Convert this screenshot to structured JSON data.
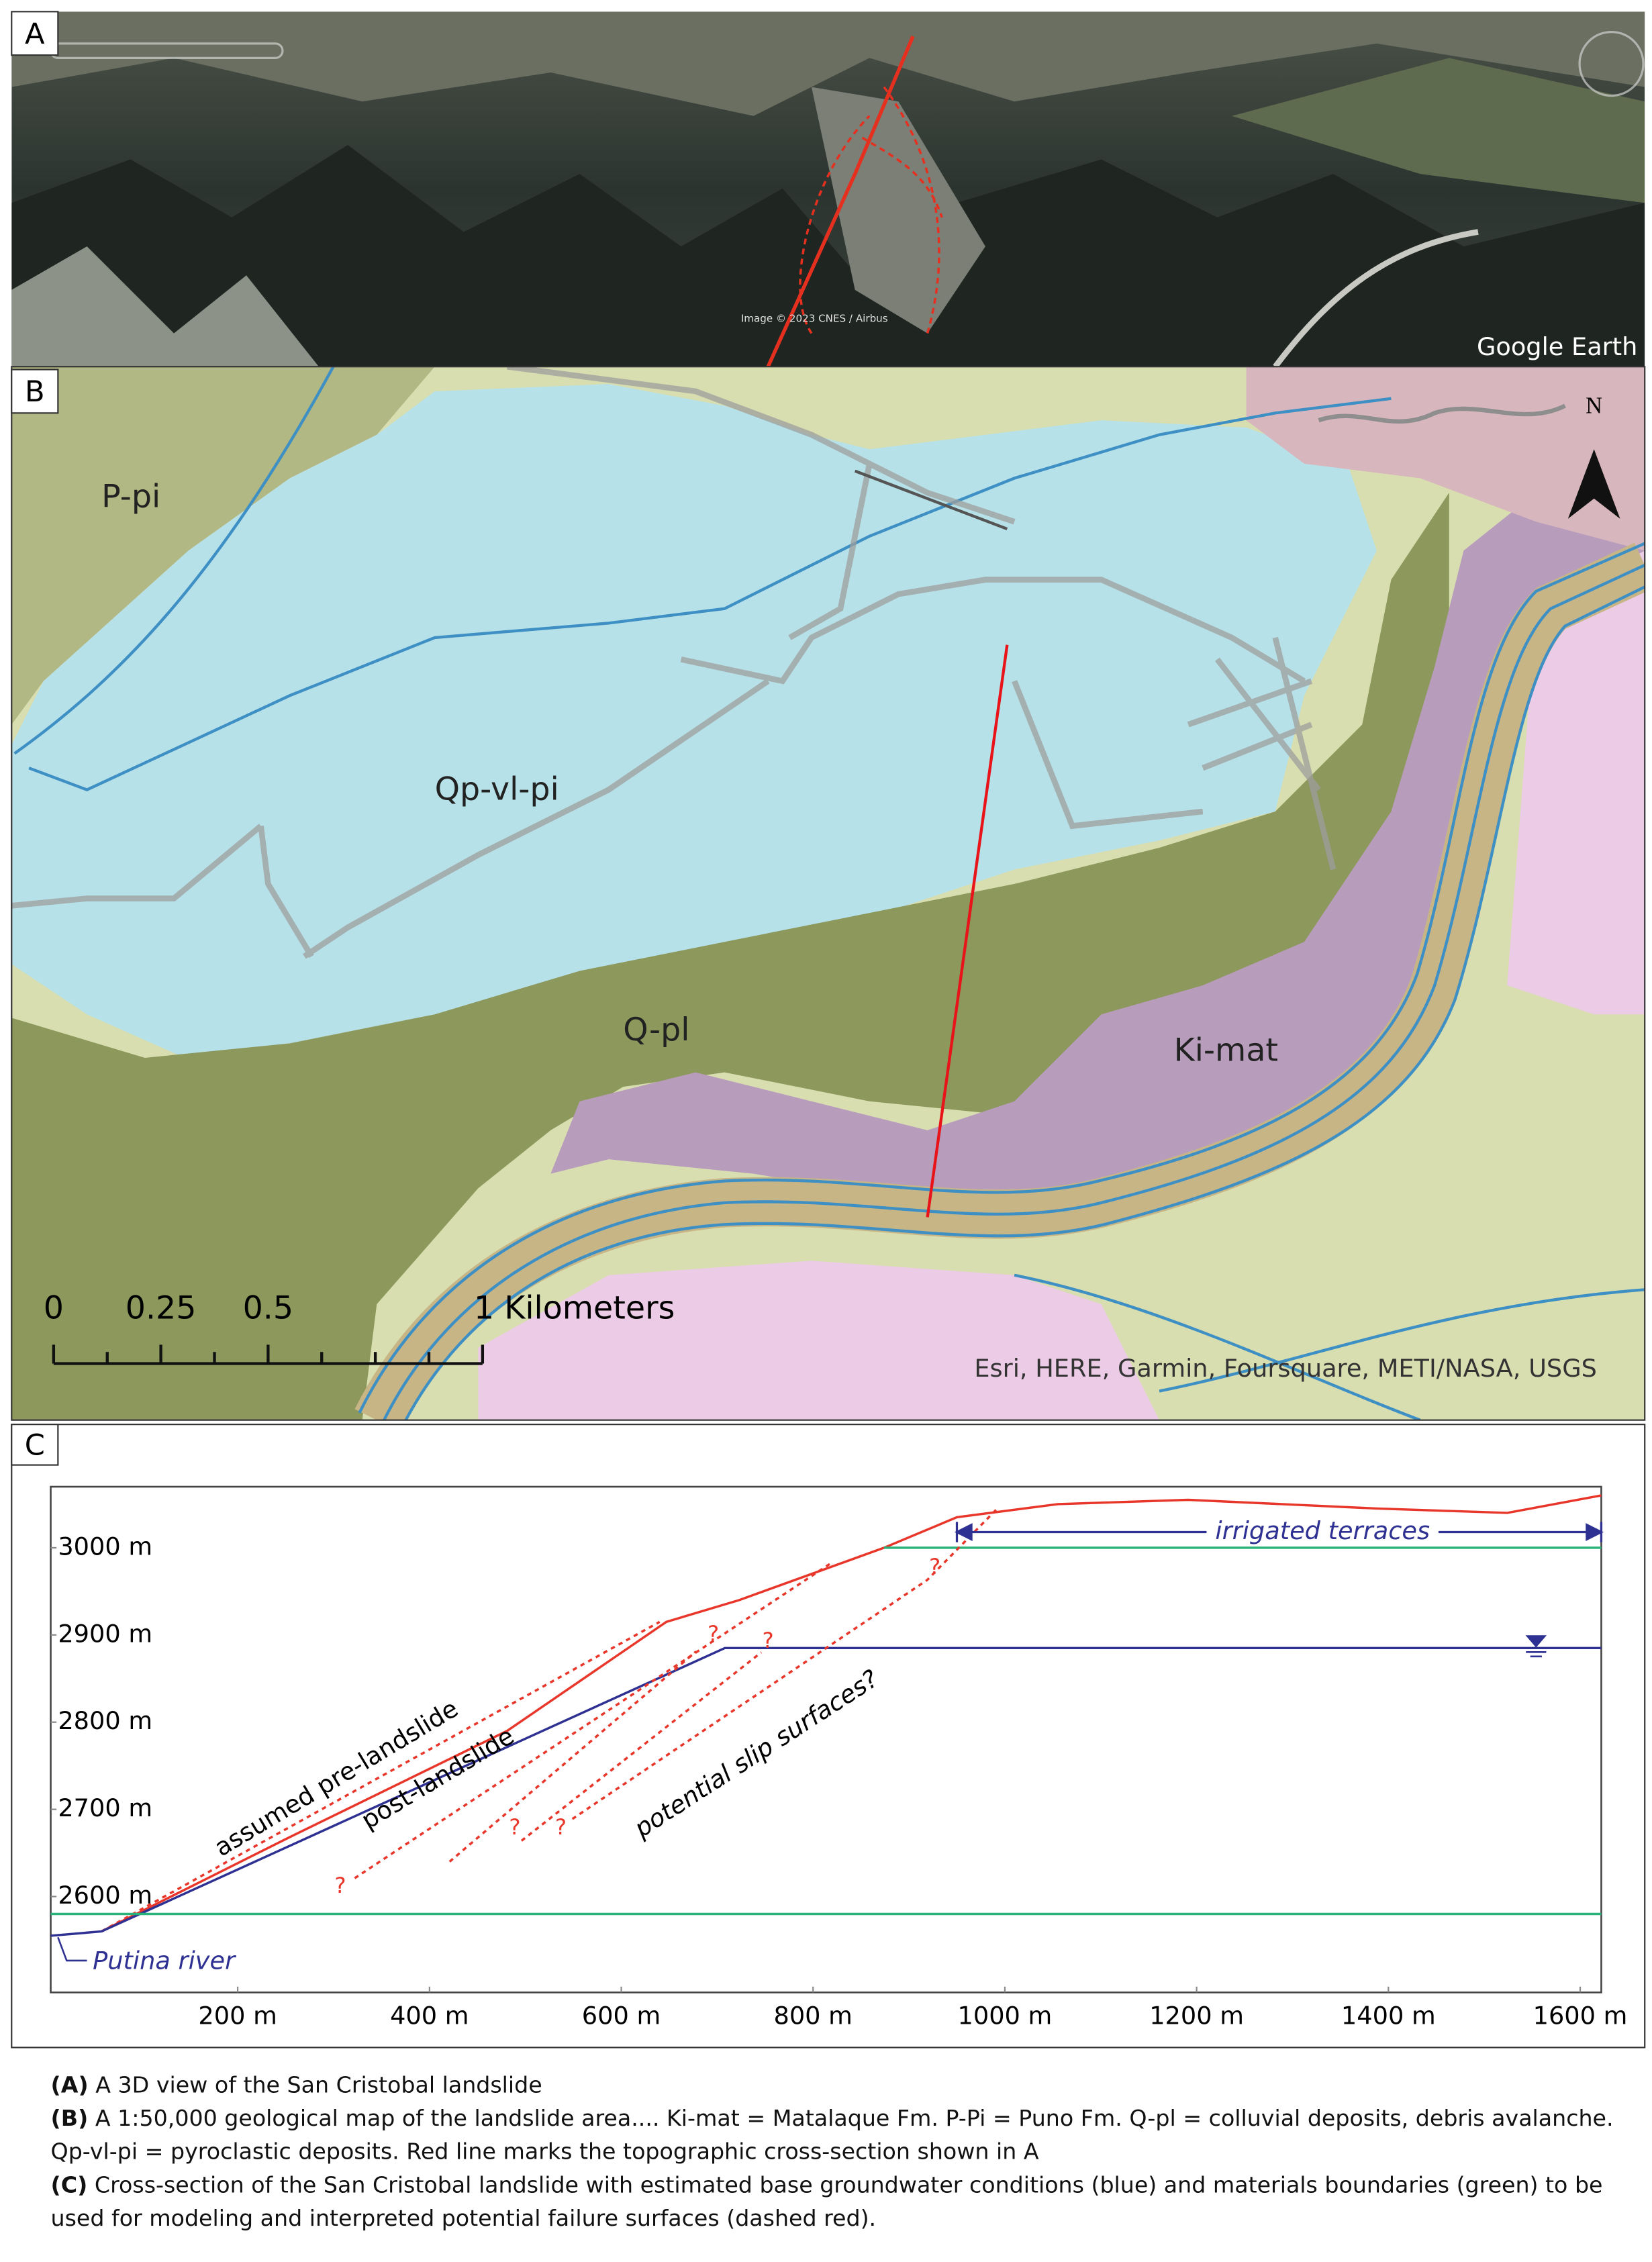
{
  "panel_a": {
    "label": "A",
    "credit": "Image © 2023 CNES / Airbus",
    "logo": "Google Earth"
  },
  "panel_b": {
    "label": "B",
    "units": [
      "P-pi",
      "Qp-vl-pi",
      "Q-pl",
      "Ki-mat"
    ],
    "north": "N",
    "scale_bar": [
      0,
      0.25,
      0.5,
      {
        "value": 1,
        "label": "1 Kilometers"
      }
    ],
    "attribution": "Esri, HERE, Garmin, Foursquare, METI/NASA, USGS"
  },
  "chart_data": {
    "type": "line",
    "label": "C",
    "xlim": [
      5,
      1622
    ],
    "ylim": [
      2490,
      3070
    ],
    "xticks": [
      {
        "value": 200,
        "label": "200 m"
      },
      {
        "value": 400,
        "label": "400 m"
      },
      {
        "value": 600,
        "label": "600 m"
      },
      {
        "value": 800,
        "label": "800 m"
      },
      {
        "value": 1000,
        "label": "1000 m"
      },
      {
        "value": 1200,
        "label": "1200 m"
      },
      {
        "value": 1400,
        "label": "1400 m"
      },
      {
        "value": 1600,
        "label": "1600 m"
      }
    ],
    "yticks": [
      {
        "value": 2600,
        "label": "2600 m"
      },
      {
        "value": 2700,
        "label": "2700 m"
      },
      {
        "value": 2800,
        "label": "2800 m"
      },
      {
        "value": 2900,
        "label": "2900 m"
      },
      {
        "value": 3000,
        "label": "3000 m"
      }
    ],
    "series": [
      {
        "name": "post-landslide",
        "color": "#e8372a",
        "style": "solid",
        "x": [
          58,
          254,
          481,
          647,
          723,
          874,
          950,
          1055,
          1191,
          1388,
          1524,
          1622
        ],
        "y": [
          2560,
          2668,
          2790,
          2915,
          2940,
          3000,
          3035,
          3050,
          3055,
          3045,
          3040,
          3060
        ]
      },
      {
        "name": "assumed pre-landslide",
        "color": "#e8372a",
        "style": "dashed",
        "x": [
          58,
          640
        ],
        "y": [
          2560,
          2915
        ]
      },
      {
        "color": "#2e3192",
        "style": "solid",
        "x": [
          5,
          58,
          708,
          1622
        ],
        "y": [
          2555,
          2560,
          2885,
          2885
        ]
      },
      {
        "color": "#29b37a",
        "style": "solid",
        "x": [
          874,
          1622
        ],
        "y": [
          3000,
          3000
        ]
      },
      {
        "color": "#29b37a",
        "style": "solid",
        "x": [
          5,
          1622
        ],
        "y": [
          2580,
          2580
        ]
      },
      {
        "color": "#e8372a",
        "style": "dashed",
        "x": [
          322,
          821
        ],
        "y": [
          2621,
          2984
        ]
      },
      {
        "color": "#e8372a",
        "style": "dashed",
        "x": [
          421,
          678
        ],
        "y": [
          2640,
          2881
        ]
      },
      {
        "color": "#e8372a",
        "style": "dashed",
        "x": [
          496,
          746
        ],
        "y": [
          2664,
          2880
        ]
      },
      {
        "color": "#e8372a",
        "style": "dashed",
        "x": [
          549,
          919,
          994
        ],
        "y": [
          2689,
          2963,
          3047
        ]
      }
    ],
    "question_marks": {
      "text": "?",
      "x": [
        307,
        489,
        537,
        696,
        753,
        927
      ],
      "y": [
        2611,
        2678,
        2678,
        2900,
        2892,
        2977
      ]
    },
    "annotations": [
      {
        "text": "potential slip surfaces?"
      },
      {
        "text": "Putina river"
      },
      {
        "text": "irrigated terraces",
        "x": [
          950,
          1622
        ],
        "y": 3018
      }
    ],
    "water_table": {
      "x": 1554,
      "y": 2887
    }
  },
  "caption": [
    {
      "label": "(A)",
      "text": "A 3D view of the San Cristobal landslide"
    },
    {
      "label": "(B)",
      "text": "A 1:50,000 geological map of the landslide area.... Ki-mat = Matalaque Fm. P-Pi = Puno Fm. Q-pl = colluvial deposits, debris avalanche. Qp-vl-pi = pyroclastic deposits. Red line marks the topographic cross-section shown in A"
    },
    {
      "label": "(C)",
      "text": "Cross-section of the San Cristobal landslide with estimated base groundwater conditions (blue) and materials boundaries (green) to be used for modeling and interpreted potential failure surfaces (dashed red)."
    }
  ]
}
